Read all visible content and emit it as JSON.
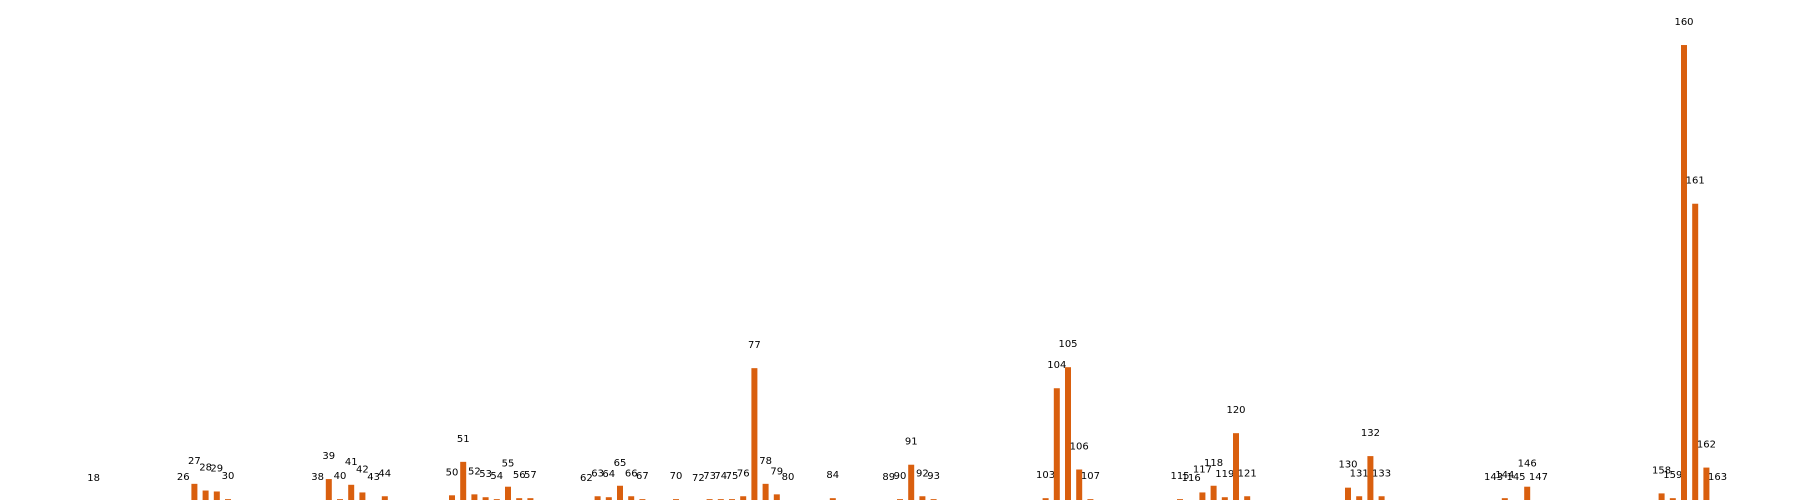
{
  "chart_data": {
    "type": "bar",
    "color": "#d95f0e",
    "categories": [
      "18",
      "26",
      "27",
      "28",
      "29",
      "30",
      "38",
      "39",
      "40",
      "41",
      "42",
      "43",
      "44",
      "50",
      "51",
      "52",
      "53",
      "54",
      "55",
      "56",
      "57",
      "62",
      "63",
      "64",
      "65",
      "66",
      "67",
      "70",
      "72",
      "73",
      "74",
      "75",
      "76",
      "77",
      "78",
      "79",
      "80",
      "84",
      "89",
      "90",
      "91",
      "92",
      "93",
      "103",
      "104",
      "105",
      "106",
      "107",
      "115",
      "116",
      "117",
      "118",
      "119",
      "120",
      "121",
      "130",
      "131",
      "132",
      "133",
      "143",
      "144",
      "145",
      "146",
      "147",
      "158",
      "159",
      "160",
      "161",
      "162",
      "163"
    ],
    "x": [
      18,
      26,
      27,
      28,
      29,
      30,
      38,
      39,
      40,
      41,
      42,
      43,
      44,
      50,
      51,
      52,
      53,
      54,
      55,
      56,
      57,
      62,
      63,
      64,
      65,
      66,
      67,
      70,
      72,
      73,
      74,
      75,
      76,
      77,
      78,
      79,
      80,
      84,
      89,
      90,
      91,
      92,
      93,
      103,
      104,
      105,
      106,
      107,
      115,
      116,
      117,
      118,
      119,
      120,
      121,
      130,
      131,
      132,
      133,
      143,
      144,
      145,
      146,
      147,
      158,
      159,
      160,
      161,
      162,
      163
    ],
    "values": [
      0.5,
      2,
      19,
      12,
      11,
      3,
      2,
      24,
      3,
      18,
      10,
      2,
      6,
      7,
      42,
      8,
      5,
      3,
      16,
      4,
      4,
      1,
      6,
      5,
      17,
      6,
      3,
      3,
      1,
      3,
      3,
      3,
      6,
      140,
      19,
      8,
      2,
      4,
      2,
      3,
      39,
      6,
      3,
      4,
      119,
      141,
      34,
      3,
      3,
      1,
      10,
      17,
      5,
      72,
      6,
      15,
      6,
      48,
      6,
      2,
      4,
      2,
      16,
      2,
      9,
      4,
      478,
      312,
      36,
      2
    ],
    "xlim": [
      10,
      170
    ],
    "ylim": [
      0,
      500
    ],
    "axes_visible": false,
    "grid": false,
    "legend": "none"
  }
}
